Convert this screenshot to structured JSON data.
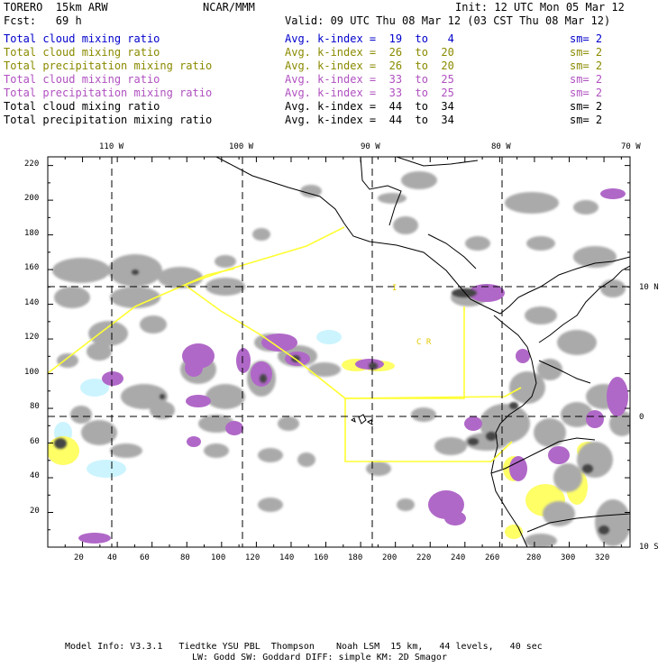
{
  "header": {
    "model": "TORERO  15km ARW",
    "org": "NCAR/MMM",
    "init": "Init: 12 UTC Mon 05 Mar 12",
    "fcst": "Fcst:   69 h",
    "valid": "Valid: 09 UTC Thu 08 Mar 12 (03 CST Thu 08 Mar 12)"
  },
  "legend": [
    {
      "field": "Total cloud mixing ratio",
      "kindex": "Avg. k-index =  19  to   4",
      "sm": "sm= 2",
      "color": "#0000cc"
    },
    {
      "field": "Total cloud mixing ratio",
      "kindex": "Avg. k-index =  26  to  20",
      "sm": "sm= 2",
      "color": "#8a8a00"
    },
    {
      "field": "Total precipitation mixing ratio",
      "kindex": "Avg. k-index =  26  to  20",
      "sm": "sm= 2",
      "color": "#8a8a00"
    },
    {
      "field": "Total cloud mixing ratio",
      "kindex": "Avg. k-index =  33  to  25",
      "sm": "sm= 2",
      "color": "#b050c0"
    },
    {
      "field": "Total precipitation mixing ratio",
      "kindex": "Avg. k-index =  33  to  25",
      "sm": "sm= 2",
      "color": "#b050c0"
    },
    {
      "field": "Total cloud mixing ratio",
      "kindex": "Avg. k-index =  44  to  34",
      "sm": "sm= 2",
      "color": "#000000"
    },
    {
      "field": "Total precipitation mixing ratio",
      "kindex": "Avg. k-index =  44  to  34",
      "sm": "sm= 2",
      "color": "#000000"
    }
  ],
  "axes": {
    "top_lon_labels": [
      "110 W",
      "100 W",
      "90 W",
      "80 W",
      "70 W"
    ],
    "right_lat_labels": [
      "10 N",
      "0",
      "10 S"
    ],
    "x_ticks": [
      "20",
      "40",
      "60",
      "80",
      "100",
      "120",
      "140",
      "160",
      "180",
      "200",
      "220",
      "240",
      "260",
      "280",
      "300",
      "320"
    ],
    "y_ticks": [
      "220",
      "200",
      "180",
      "160",
      "140",
      "120",
      "100",
      "80",
      "60",
      "40",
      "20"
    ],
    "x_range": [
      0,
      335
    ],
    "y_range": [
      0,
      225
    ]
  },
  "map_labels": {
    "country_code": "C  R",
    "small_mark": "I"
  },
  "footer": {
    "line1": "Model Info: V3.3.1   Tiedtke YSU PBL  Thompson    Noah LSM  15 km,   44 levels,   40 sec",
    "line2": "LW: Godd SW: Goddard DIFF: simple KM: 2D Smagor"
  },
  "colors": {
    "cloud_light": "#aaaaaa",
    "cloud_dark": "#555555",
    "precip_purple": "#b068c8",
    "precip_yellow": "#ffff66",
    "cloud_cyan": "#ccf4ff",
    "boundary_yellow": "#ffff33"
  }
}
